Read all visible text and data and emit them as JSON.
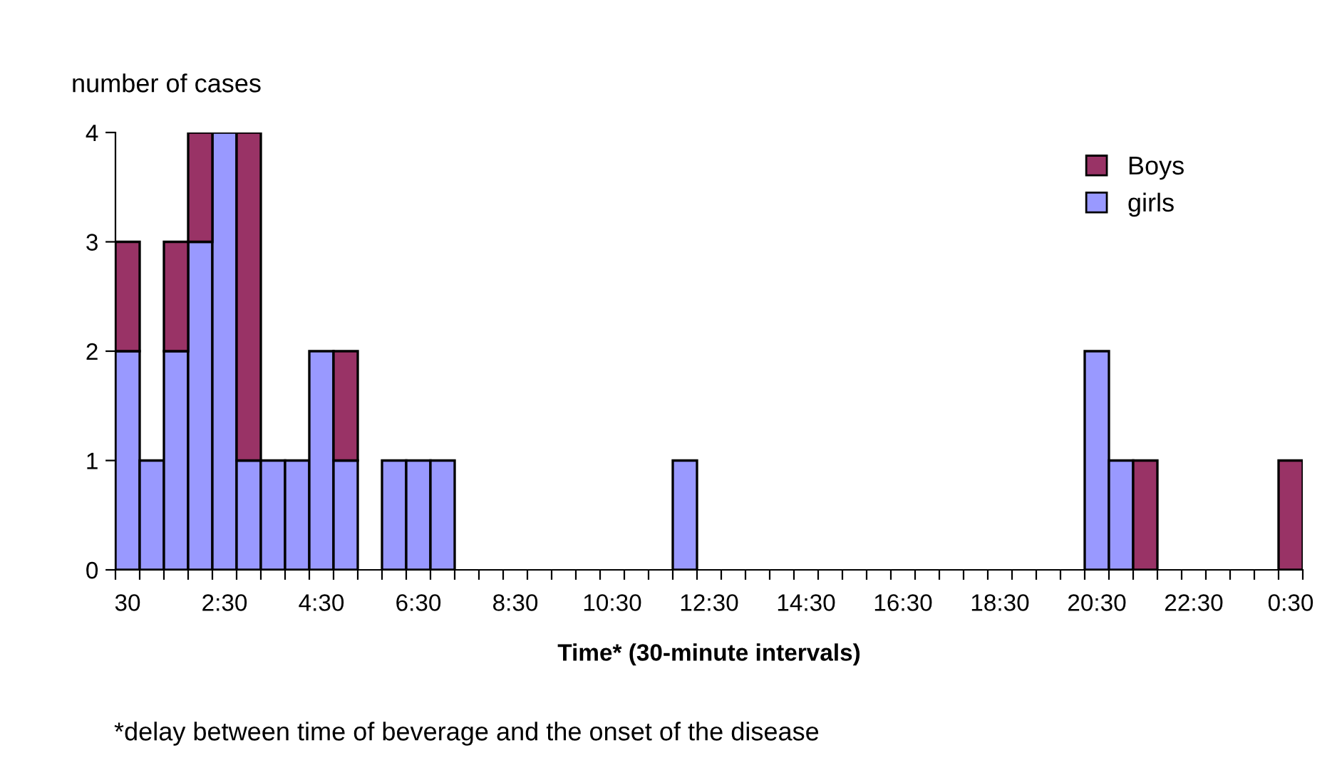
{
  "chart_data": {
    "type": "bar",
    "stacked": true,
    "ylabel": "number of cases",
    "xlabel": "Time* (30-minute intervals)",
    "categories": [
      "30",
      null,
      null,
      null,
      "2:30",
      null,
      null,
      null,
      "4:30",
      null,
      null,
      null,
      "6:30",
      null,
      null,
      null,
      "8:30",
      null,
      null,
      null,
      "10:30",
      null,
      null,
      null,
      "12:30",
      null,
      null,
      null,
      "14:30",
      null,
      null,
      null,
      "16:30",
      null,
      null,
      null,
      "18:30",
      null,
      null,
      null,
      "20:30",
      null,
      null,
      null,
      "22:30",
      null,
      null,
      null,
      "0:30"
    ],
    "series": [
      {
        "name": "girls",
        "color": "#9999ff",
        "values": [
          2,
          1,
          2,
          3,
          4,
          1,
          1,
          1,
          2,
          1,
          0,
          1,
          1,
          1,
          0,
          0,
          0,
          0,
          0,
          0,
          0,
          0,
          0,
          1,
          0,
          0,
          0,
          0,
          0,
          0,
          0,
          0,
          0,
          0,
          0,
          0,
          0,
          0,
          0,
          0,
          2,
          1,
          0,
          0,
          0,
          0,
          0,
          0,
          0
        ]
      },
      {
        "name": "Boys",
        "color": "#993366",
        "values": [
          1,
          0,
          1,
          1,
          0,
          3,
          0,
          0,
          0,
          1,
          0,
          0,
          0,
          0,
          0,
          0,
          0,
          0,
          0,
          0,
          0,
          0,
          0,
          0,
          0,
          0,
          0,
          0,
          0,
          0,
          0,
          0,
          0,
          0,
          0,
          0,
          0,
          0,
          0,
          0,
          0,
          0,
          1,
          0,
          0,
          0,
          0,
          0,
          1
        ]
      }
    ],
    "ylim": [
      0,
      4
    ],
    "yticks": [
      0,
      1,
      2,
      3,
      4
    ],
    "grid": false,
    "legend": "top right",
    "annotations": [
      "*delay between time of beverage and the onset of the disease"
    ]
  }
}
